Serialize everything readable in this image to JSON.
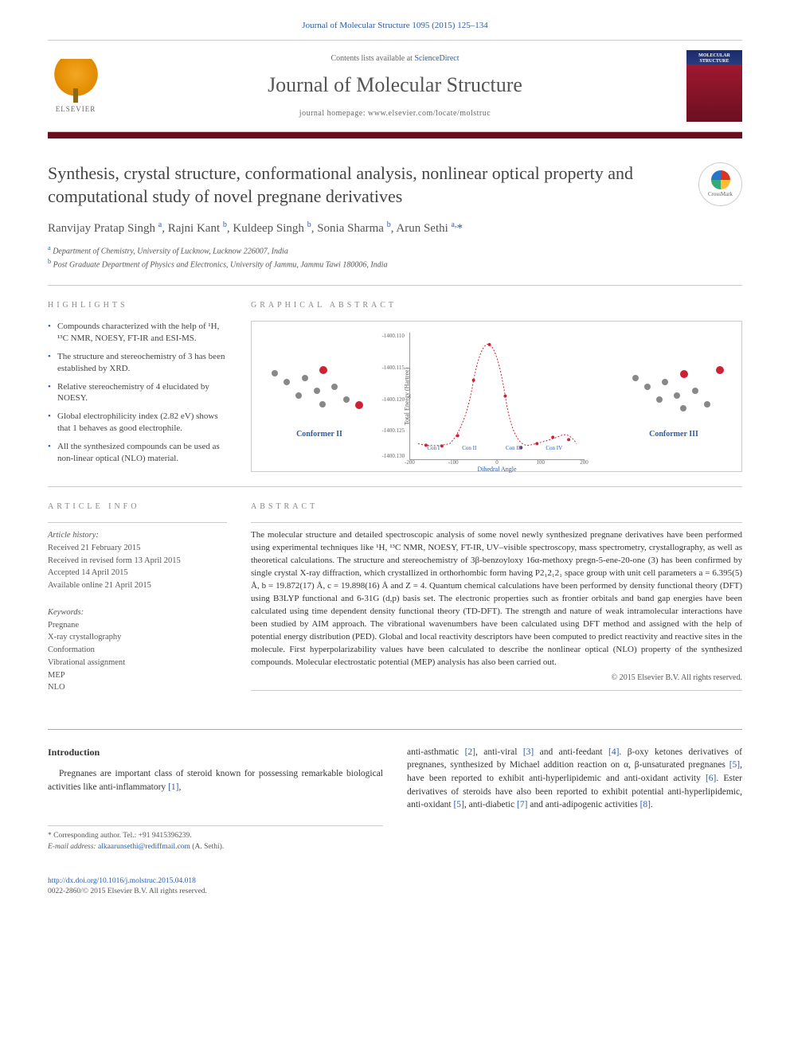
{
  "page_header": "Journal of Molecular Structure 1095 (2015) 125–134",
  "masthead": {
    "contents_prefix": "Contents lists available at ",
    "contents_link": "ScienceDirect",
    "journal_name": "Journal of Molecular Structure",
    "homepage_prefix": "journal homepage: ",
    "homepage_url": "www.elsevier.com/locate/molstruc",
    "publisher": "ELSEVIER",
    "cover_text": "MOLECULAR STRUCTURE"
  },
  "article": {
    "title": "Synthesis, crystal structure, conformational analysis, nonlinear optical property and computational study of novel pregnane derivatives",
    "crossmark": "CrossMark",
    "authors_html": "Ranvijay Pratap Singh <sup>a</sup>, Rajni Kant <sup>b</sup>, Kuldeep Singh <sup>b</sup>, Sonia Sharma <sup>b</sup>, Arun Sethi <sup>a,</sup><span class='corr-mark'>*</span>",
    "affiliations": [
      {
        "sup": "a",
        "text": "Department of Chemistry, University of Lucknow, Lucknow 226007, India"
      },
      {
        "sup": "b",
        "text": "Post Graduate Department of Physics and Electronics, University of Jammu, Jammu Tawi 180006, India"
      }
    ]
  },
  "highlights": {
    "heading": "HIGHLIGHTS",
    "items": [
      "Compounds characterized with the help of ¹H, ¹³C NMR, NOESY, FT-IR and ESI-MS.",
      "The structure and stereochemistry of 3 has been established by XRD.",
      "Relative stereochemistry of 4 elucidated by NOESY.",
      "Global electrophilicity index (2.82 eV) shows that 1 behaves as good electrophile.",
      "All the synthesized compounds can be used as non-linear optical (NLO) material."
    ]
  },
  "graphical_abstract": {
    "heading": "GRAPHICAL ABSTRACT",
    "conformer_left": "Conformer II",
    "conformer_right": "Conformer III",
    "plot": {
      "ylabel": "Total Energy (Hartree)",
      "xlabel": "Dihedral Angle",
      "yticks": [
        "-1400.110",
        "-1400.115",
        "-1400.120",
        "-1400.125",
        "-1400.130"
      ],
      "xticks": [
        "-200",
        "-100",
        "0",
        "100",
        "200"
      ],
      "conf_labels": [
        "Con I",
        "Con II",
        "Con III",
        "Con IV"
      ],
      "curve_color": "#c23",
      "point_color": "#c23"
    }
  },
  "article_info": {
    "heading": "ARTICLE INFO",
    "history_label": "Article history:",
    "history": [
      "Received 21 February 2015",
      "Received in revised form 13 April 2015",
      "Accepted 14 April 2015",
      "Available online 21 April 2015"
    ],
    "keywords_label": "Keywords:",
    "keywords": [
      "Pregnane",
      "X-ray crystallography",
      "Conformation",
      "Vibrational assignment",
      "MEP",
      "NLO"
    ]
  },
  "abstract": {
    "heading": "ABSTRACT",
    "text": "The molecular structure and detailed spectroscopic analysis of some novel newly synthesized pregnane derivatives have been performed using experimental techniques like ¹H, ¹³C NMR, NOESY, FT-IR, UV–visible spectroscopy, mass spectrometry, crystallography, as well as theoretical calculations. The structure and stereochemistry of 3β-benzoyloxy 16α-methoxy pregn-5-ene-20-one (3) has been confirmed by single crystal X-ray diffraction, which crystallized in orthorhombic form having P2₁2₁2₁ space group with unit cell parameters a = 6.395(5) Å, b = 19.872(17) Å, c = 19.898(16) Å and Z = 4. Quantum chemical calculations have been performed by density functional theory (DFT) using B3LYP functional and 6-31G (d,p) basis set. The electronic properties such as frontier orbitals and band gap energies have been calculated using time dependent density functional theory (TD-DFT). The strength and nature of weak intramolecular interactions have been studied by AIM approach. The vibrational wavenumbers have been calculated using DFT method and assigned with the help of potential energy distribution (PED). Global and local reactivity descriptors have been computed to predict reactivity and reactive sites in the molecule. First hyperpolarizability values have been calculated to describe the nonlinear optical (NLO) property of the synthesized compounds. Molecular electrostatic potential (MEP) analysis has also been carried out.",
    "copyright": "© 2015 Elsevier B.V. All rights reserved."
  },
  "body": {
    "intro_heading": "Introduction",
    "left_para": "Pregnanes are important class of steroid known for possessing remarkable biological activities like anti-inflammatory ",
    "left_ref1": "[1]",
    "right_para_1": "anti-asthmatic ",
    "right_ref2": "[2]",
    "right_para_2": ", anti-viral ",
    "right_ref3": "[3]",
    "right_para_3": " and anti-feedant ",
    "right_ref4": "[4]",
    "right_para_4": ". β-oxy ketones derivatives of pregnanes, synthesized by Michael addition reaction on α, β-unsaturated pregnanes ",
    "right_ref5": "[5]",
    "right_para_5": ", have been reported to exhibit anti-hyperlipidemic and anti-oxidant activity ",
    "right_ref6": "[6]",
    "right_para_6": ". Ester derivatives of steroids have also been reported to exhibit potential anti-hyperlipidemic, anti-oxidant ",
    "right_ref5b": "[5]",
    "right_para_7": ", anti-diabetic ",
    "right_ref7": "[7]",
    "right_para_8": " and anti-adipogenic activities ",
    "right_ref8": "[8]",
    "right_para_9": "."
  },
  "corresponding": {
    "label": "* Corresponding author. Tel.: +91 9415396239.",
    "email_label": "E-mail address: ",
    "email": "alkaarunsethi@rediffmail.com",
    "email_suffix": " (A. Sethi)."
  },
  "footer": {
    "doi": "http://dx.doi.org/10.1016/j.molstruc.2015.04.018",
    "issn_line": "0022-2860/© 2015 Elsevier B.V. All rights reserved."
  },
  "colors": {
    "link": "#2a5caa",
    "bar": "#6b0f20"
  }
}
